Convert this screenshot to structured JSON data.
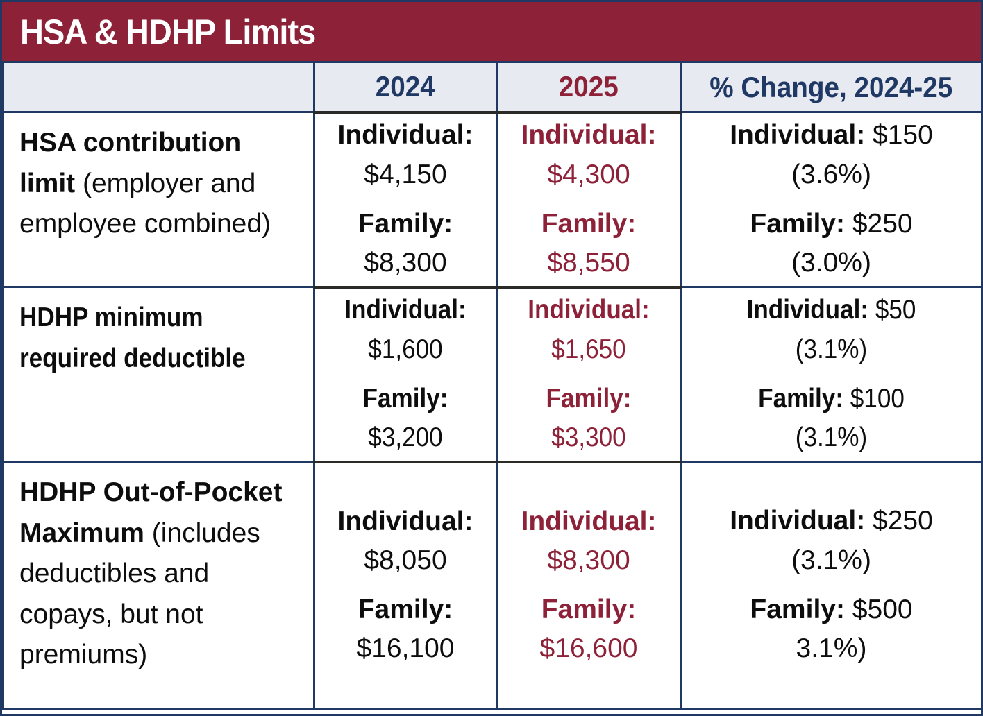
{
  "title": "HSA & HDHP Limits",
  "columns": {
    "label": "",
    "y2024": "2024",
    "y2025": "2025",
    "change": "% Change, 2024-25"
  },
  "labels": {
    "individual": "Individual:",
    "family": "Family:"
  },
  "colors": {
    "maroon": "#8C2138",
    "navy": "#1F3864",
    "header_bg": "#E8EAF1",
    "dark_line": "#2B2A26",
    "ink": "#0d0d0d"
  },
  "rows": [
    {
      "name_bold": "HSA contribution limit",
      "name_rest": " (employer and employee combined)",
      "y2024": {
        "individual": "$4,150",
        "family": "$8,300"
      },
      "y2025": {
        "individual": "$4,300",
        "family": "$8,550"
      },
      "change": {
        "individual_value": "$150",
        "individual_pct": "(3.6%)",
        "family_value": "$250",
        "family_pct": "(3.0%)"
      }
    },
    {
      "name_bold": "HDHP minimum required deductible",
      "name_rest": "",
      "y2024": {
        "individual": "$1,600",
        "family": "$3,200"
      },
      "y2025": {
        "individual": "$1,650",
        "family": "$3,300"
      },
      "change": {
        "individual_value": "$50",
        "individual_pct": "(3.1%)",
        "family_value": "$100",
        "family_pct": "(3.1%)"
      }
    },
    {
      "name_bold": "HDHP Out-of-Pocket Maximum",
      "name_rest": " (includes deductibles and copays, but not premiums)",
      "y2024": {
        "individual": "$8,050",
        "family": "$16,100"
      },
      "y2025": {
        "individual": "$8,300",
        "family": "$16,600"
      },
      "change": {
        "individual_value": "$250",
        "individual_pct": "(3.1%)",
        "family_value": "$500",
        "family_pct": "3.1%)"
      }
    }
  ],
  "chart_data": {
    "type": "table",
    "title": "HSA & HDHP Limits",
    "columns": [
      "",
      "2024",
      "2025",
      "% Change, 2024-25"
    ],
    "rows": [
      [
        "HSA contribution limit (employer and employee combined)",
        "Individual: $4,150 | Family: $8,300",
        "Individual: $4,300 | Family: $8,550",
        "Individual: $150 (3.6%) | Family: $250 (3.0%)"
      ],
      [
        "HDHP minimum required deductible",
        "Individual: $1,600 | Family: $3,200",
        "Individual: $1,650 | Family: $3,300",
        "Individual: $50 (3.1%) | Family: $100 (3.1%)"
      ],
      [
        "HDHP Out-of-Pocket Maximum (includes deductibles and copays, but not premiums)",
        "Individual: $8,050 | Family: $16,100",
        "Individual: $8,300 | Family: $16,600",
        "Individual: $250 (3.1%) | Family: $500 3.1%)"
      ]
    ]
  }
}
